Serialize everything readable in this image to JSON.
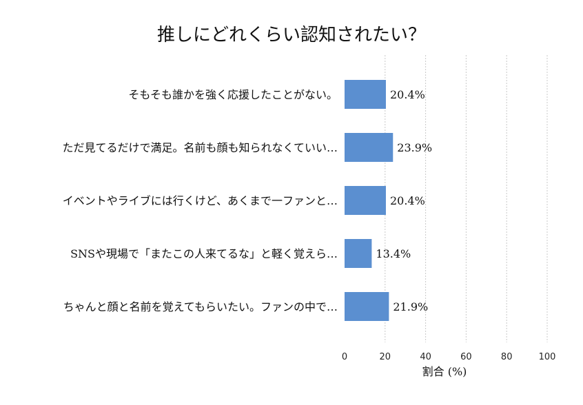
{
  "chart_data": {
    "type": "bar",
    "orientation": "horizontal",
    "title": "推しにどれくらい認知されたい？",
    "xlabel": "割合 (%)",
    "ylabel": "",
    "xlim": [
      0,
      100
    ],
    "xticks": [
      "0",
      "20",
      "40",
      "60",
      "80",
      "100"
    ],
    "grid": true,
    "categories": [
      "そもそも誰かを強く応援したことがない。",
      "ただ見てるだけで満足。名前も顔も知られなくていい…",
      "イベントやライブには行くけど、あくまで一ファンと…",
      "SNSや現場で「またこの人来てるな」と軽く覚えら…",
      "ちゃんと顔と名前を覚えてもらいたい。ファンの中で…"
    ],
    "values": [
      20.4,
      23.9,
      20.4,
      13.4,
      21.9
    ],
    "value_labels": [
      "20.4%",
      "23.9%",
      "20.4%",
      "13.4%",
      "21.9%"
    ],
    "bar_color": "#5b8fd0",
    "grid_color": "#c8c8c8"
  }
}
